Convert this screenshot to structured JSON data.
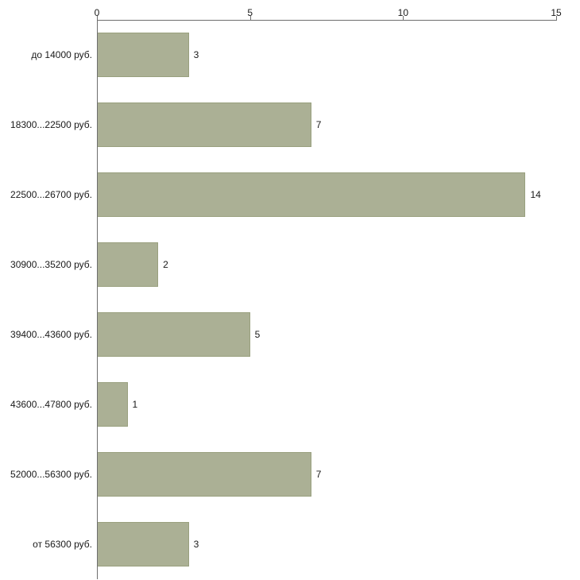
{
  "chart_data": {
    "type": "bar",
    "orientation": "horizontal",
    "title": "",
    "xlabel": "",
    "ylabel": "",
    "categories": [
      "до 14000 руб.",
      "18300...22500 руб.",
      "22500...26700 руб.",
      "30900...35200 руб.",
      "39400...43600 руб.",
      "43600...47800 руб.",
      "52000...56300 руб.",
      "от 56300 руб."
    ],
    "values": [
      3,
      7,
      14,
      2,
      5,
      1,
      7,
      3
    ],
    "value_labels": [
      "3",
      "7",
      "14",
      "2",
      "5",
      "1",
      "7",
      "3"
    ],
    "xlim": [
      0,
      15
    ],
    "xticks": [
      0,
      5,
      10,
      15
    ],
    "grid": false,
    "legend": false,
    "axis_position": "top",
    "bar_color": "#abb095",
    "bar_border_color": "#99a07e",
    "axis_color": "#6e6e6e",
    "background_color": "#ffffff"
  }
}
